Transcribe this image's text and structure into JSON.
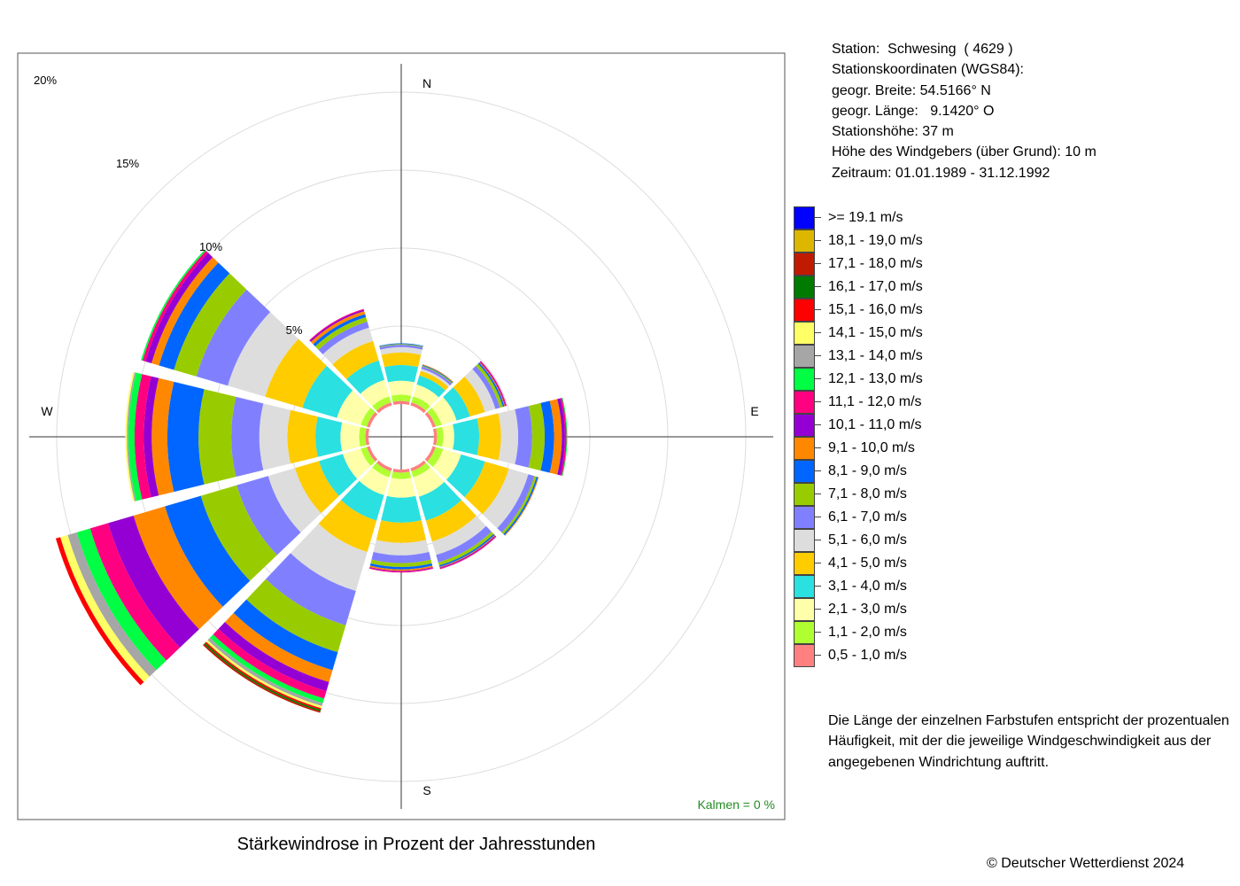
{
  "chart_data": {
    "type": "wind-rose",
    "title": "Stärkewindrose in Prozent der Jahresstunden",
    "direction_labels": {
      "north": "N",
      "east": "E",
      "south": "S",
      "west": "W"
    },
    "radial_tick_labels": [
      "5%",
      "10%",
      "15%",
      "20%"
    ],
    "radial_ticks": [
      5,
      10,
      15,
      20
    ],
    "radial_unit": "%",
    "calm": "Kalmen  =  0 %",
    "categories": [
      "0.5 - 1.0",
      "1.1 - 2.0",
      "2.1 - 3.0",
      "3.1 - 4.0",
      "4.1 - 5.0",
      "5.1 - 6.0",
      "6.1 - 7.0",
      "7.1 - 8.0",
      "8.1 - 9.0",
      "9.1 - 10.0",
      "10.1 - 11.0",
      "11.1 - 12.0",
      "12.1 - 13.0",
      "13.1 - 14.0",
      "14.1 - 15.0",
      "15.1 - 16.0",
      "16.1 - 17.0",
      "17.1 - 18.0",
      "18.1 - 19.0",
      ">= 19.1"
    ],
    "directions_deg": [
      0,
      30,
      60,
      90,
      120,
      150,
      180,
      210,
      240,
      270,
      300,
      330
    ],
    "sectors": [
      {
        "direction": 0,
        "values": [
          0.2,
          0.4,
          0.9,
          1.0,
          0.8,
          0.35,
          0.15,
          0.05,
          0.05,
          0,
          0,
          0,
          0,
          0,
          0,
          0,
          0,
          0,
          0,
          0
        ]
      },
      {
        "direction": 30,
        "values": [
          0.2,
          0.4,
          0.8,
          0.6,
          0.3,
          0.15,
          0.15,
          0.05,
          0.05,
          0.05,
          0,
          0,
          0,
          0,
          0,
          0,
          0,
          0,
          0,
          0
        ]
      },
      {
        "direction": 60,
        "values": [
          0.2,
          0.4,
          1.0,
          0.9,
          1.0,
          0.7,
          0.3,
          0.2,
          0.1,
          0.05,
          0.05,
          0.05,
          0,
          0,
          0,
          0,
          0,
          0,
          0,
          0
        ]
      },
      {
        "direction": 90,
        "values": [
          0.2,
          0.4,
          0.7,
          1.6,
          1.4,
          1.1,
          0.9,
          0.8,
          0.6,
          0.5,
          0.2,
          0.1,
          0.05,
          0,
          0,
          0,
          0,
          0,
          0,
          0
        ]
      },
      {
        "direction": 120,
        "values": [
          0.2,
          0.5,
          1.2,
          1.6,
          1.6,
          1.3,
          0.4,
          0.15,
          0.1,
          0.05,
          0,
          0,
          0,
          0,
          0,
          0,
          0,
          0,
          0,
          0
        ]
      },
      {
        "direction": 150,
        "values": [
          0.2,
          0.4,
          1.3,
          1.6,
          1.4,
          0.9,
          0.5,
          0.2,
          0.1,
          0.05,
          0.05,
          0.05,
          0,
          0,
          0,
          0,
          0,
          0,
          0,
          0
        ]
      },
      {
        "direction": 180,
        "values": [
          0.2,
          0.4,
          1.2,
          1.6,
          1.3,
          0.8,
          0.5,
          0.25,
          0.15,
          0.1,
          0.05,
          0.05,
          0,
          0,
          0,
          0,
          0,
          0,
          0,
          0
        ]
      },
      {
        "direction": 210,
        "values": [
          0.2,
          0.4,
          1.2,
          1.7,
          2.1,
          2.6,
          2.3,
          1.8,
          1.2,
          0.8,
          0.6,
          0.5,
          0.3,
          0.2,
          0.15,
          0.1,
          0.1,
          0.1,
          0,
          0
        ]
      },
      {
        "direction": 240,
        "values": [
          0.2,
          0.4,
          1.2,
          1.6,
          1.6,
          1.8,
          2.1,
          2.4,
          2.4,
          2.1,
          1.7,
          1.2,
          0.9,
          0.6,
          0.5,
          0.3,
          0,
          0,
          0,
          0
        ]
      },
      {
        "direction": 270,
        "values": [
          0.2,
          0.4,
          1.2,
          1.6,
          1.8,
          1.8,
          1.8,
          2.1,
          2.0,
          1.0,
          0.5,
          0.6,
          0.4,
          0.1,
          0.1,
          0,
          0,
          0,
          0,
          0
        ]
      },
      {
        "direction": 300,
        "values": [
          0.2,
          0.4,
          1.6,
          2.3,
          2.5,
          2.5,
          2.1,
          1.5,
          1.0,
          0.5,
          0.4,
          0.2,
          0.1,
          0,
          0,
          0,
          0,
          0,
          0,
          0
        ]
      },
      {
        "direction": 330,
        "values": [
          0.2,
          0.4,
          1.1,
          1.3,
          1.3,
          0.9,
          0.4,
          0.3,
          0.2,
          0.2,
          0.1,
          0.05,
          0,
          0,
          0,
          0,
          0,
          0,
          0,
          0
        ]
      }
    ]
  },
  "station_info": {
    "station": "Station:  Schwesing  ( 4629 )",
    "coordinates_heading": "Stationskoordinaten (WGS84):",
    "latitude": "geogr. Breite: 54.5166° N",
    "longitude": "geogr. Länge:   9.1420° O",
    "height": "Stationshöhe: 37 m",
    "sensor_height": "Höhe des Windgebers (über Grund): 10 m",
    "period": "Zeitraum: 01.01.1989 - 31.12.1992"
  },
  "legend": [
    {
      "label": ">= 19.1 m/s",
      "color": "#0000ff"
    },
    {
      "label": "18,1 - 19,0 m/s",
      "color": "#ddb600"
    },
    {
      "label": "17,1 - 18,0 m/s",
      "color": "#c01a00"
    },
    {
      "label": "16,1 - 17,0 m/s",
      "color": "#007a00"
    },
    {
      "label": "15,1 - 16,0 m/s",
      "color": "#ff0000"
    },
    {
      "label": "14,1 - 15,0 m/s",
      "color": "#ffff66"
    },
    {
      "label": "13,1 - 14,0 m/s",
      "color": "#a6a6a6"
    },
    {
      "label": "12,1 - 13,0 m/s",
      "color": "#00ff44"
    },
    {
      "label": "11,1 - 12,0 m/s",
      "color": "#ff0080"
    },
    {
      "label": "10,1 - 11,0 m/s",
      "color": "#9400d3"
    },
    {
      "label": "9,1 - 10,0 m/s",
      "color": "#ff8800"
    },
    {
      "label": "8,1 - 9,0 m/s",
      "color": "#0066ff"
    },
    {
      "label": "7,1 - 8,0 m/s",
      "color": "#99cc00"
    },
    {
      "label": "6,1 - 7,0 m/s",
      "color": "#8080ff"
    },
    {
      "label": "5,1 - 6,0 m/s",
      "color": "#dddddd"
    },
    {
      "label": "4,1 - 5,0 m/s",
      "color": "#ffcc00"
    },
    {
      "label": "3,1 - 4,0 m/s",
      "color": "#2ae0e0"
    },
    {
      "label": "2,1 - 3,0 m/s",
      "color": "#ffffaa"
    },
    {
      "label": "1,1 - 2,0 m/s",
      "color": "#b0ff30"
    },
    {
      "label": "0,5 - 1,0 m/s",
      "color": "#ff8080"
    }
  ],
  "note": "Die Länge der einzelnen Farbstufen entspricht der prozentualen Häufigkeit, mit der die jeweilige Windgeschwindigkeit aus der angegebenen Windrichtung auftritt.",
  "copyright": "© Deutscher Wetterdienst  2024",
  "colors": {
    "calm_text": "#228b22",
    "grid": "#dddddd",
    "frame": "#555555"
  }
}
